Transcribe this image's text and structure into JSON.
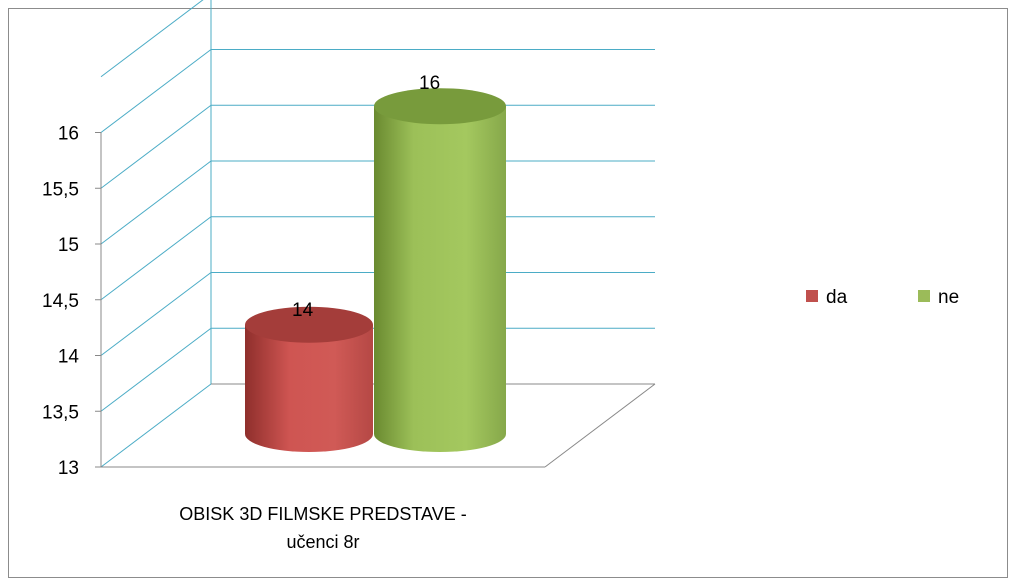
{
  "chart_data": {
    "type": "bar",
    "style": "3d-cylinder",
    "categories": [
      "OBISK 3D FILMSKE PREDSTAVE - učenci 8r"
    ],
    "series": [
      {
        "name": "da",
        "values": [
          14
        ],
        "color": "#c0504d"
      },
      {
        "name": "ne",
        "values": [
          16
        ],
        "color": "#9bbb59"
      }
    ],
    "data_labels": [
      "14",
      "16"
    ],
    "yticks": [
      "13",
      "13,5",
      "14",
      "14,5",
      "15",
      "15,5",
      "16"
    ],
    "ylim": [
      13,
      16.5
    ],
    "grid": true,
    "gridline_color": "#4bacc6",
    "legend_position": "right",
    "category_label_lines": [
      "OBISK 3D FILMSKE PREDSTAVE -",
      "učenci 8r"
    ]
  }
}
